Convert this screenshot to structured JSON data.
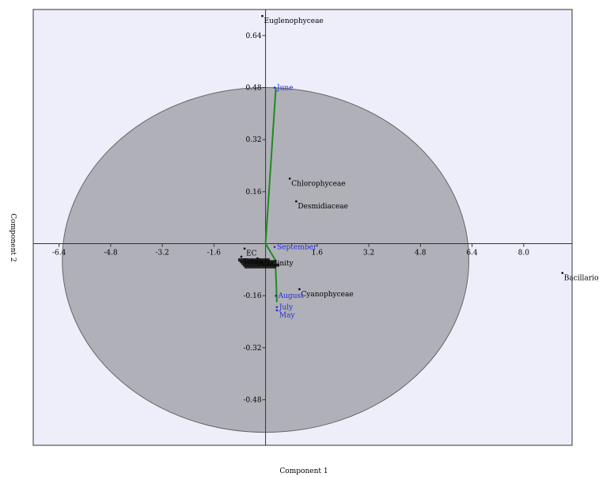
{
  "chart_data": {
    "type": "scatter",
    "xlabel": "Component 1",
    "ylabel": "Component 2",
    "xlim": [
      -7.2,
      9.5
    ],
    "ylim": [
      -0.62,
      0.72
    ],
    "xticks": [
      {
        "v": -6.4,
        "label": "-6.4"
      },
      {
        "v": -4.8,
        "label": "-4.8"
      },
      {
        "v": -3.2,
        "label": "-3.2"
      },
      {
        "v": -1.6,
        "label": "-1.6"
      },
      {
        "v": 1.6,
        "label": "1.6"
      },
      {
        "v": 3.2,
        "label": "3.2"
      },
      {
        "v": 4.8,
        "label": "4.8"
      },
      {
        "v": 6.4,
        "label": "6.4"
      },
      {
        "v": 8.0,
        "label": "8.0"
      }
    ],
    "yticks": [
      {
        "v": 0.64,
        "label": "0.64"
      },
      {
        "v": 0.48,
        "label": "0.48"
      },
      {
        "v": 0.32,
        "label": "0.32"
      },
      {
        "v": 0.16,
        "label": "0.16"
      },
      {
        "v": -0.16,
        "label": "-0.16"
      },
      {
        "v": -0.32,
        "label": "-0.32"
      },
      {
        "v": -0.48,
        "label": "-0.48"
      }
    ],
    "ellipse": {
      "cx": 0.0,
      "cy": -0.05,
      "rx": 6.3,
      "ry": 0.53
    },
    "variables": [
      {
        "label": "Euglenophyceae",
        "x": -0.1,
        "y": 0.7
      },
      {
        "label": "Chlorophyceae",
        "x": 0.75,
        "y": 0.2
      },
      {
        "label": "Desmidiaceae",
        "x": 0.95,
        "y": 0.13
      },
      {
        "label": "Cyanophyceae",
        "x": 1.05,
        "y": -0.14
      },
      {
        "label": "Bacillariophyceae",
        "x": 9.2,
        "y": -0.09
      },
      {
        "label": "EC",
        "x": -0.65,
        "y": -0.015
      },
      {
        "label": "Total",
        "x": -0.75,
        "y": -0.04
      },
      {
        "label": "Alkalinity",
        "x": -0.25,
        "y": -0.045
      }
    ],
    "cluster_labels": [
      "",
      "",
      "",
      "",
      ""
    ],
    "cases": [
      {
        "label": "June",
        "x": 0.28,
        "y": 0.48
      },
      {
        "label": "September",
        "x": 0.28,
        "y": -0.01
      },
      {
        "label": "August",
        "x": 0.32,
        "y": -0.16
      },
      {
        "label": "July",
        "x": 0.35,
        "y": -0.195
      },
      {
        "label": "May",
        "x": 0.35,
        "y": -0.205
      }
    ],
    "green_path": [
      {
        "x": 0.32,
        "y": 0.48
      },
      {
        "x": 0.0,
        "y": 0.0
      },
      {
        "x": 0.3,
        "y": -0.05
      },
      {
        "x": 0.33,
        "y": -0.12
      },
      {
        "x": 0.35,
        "y": -0.18
      }
    ],
    "colors": {
      "plot_bg": "#eeeefb",
      "ellipse_fill": "#b0b0b9",
      "ellipse_stroke": "#666666",
      "axes": "#333333",
      "case_text": "#1f2ad6",
      "path": "#1f8a1f"
    }
  }
}
